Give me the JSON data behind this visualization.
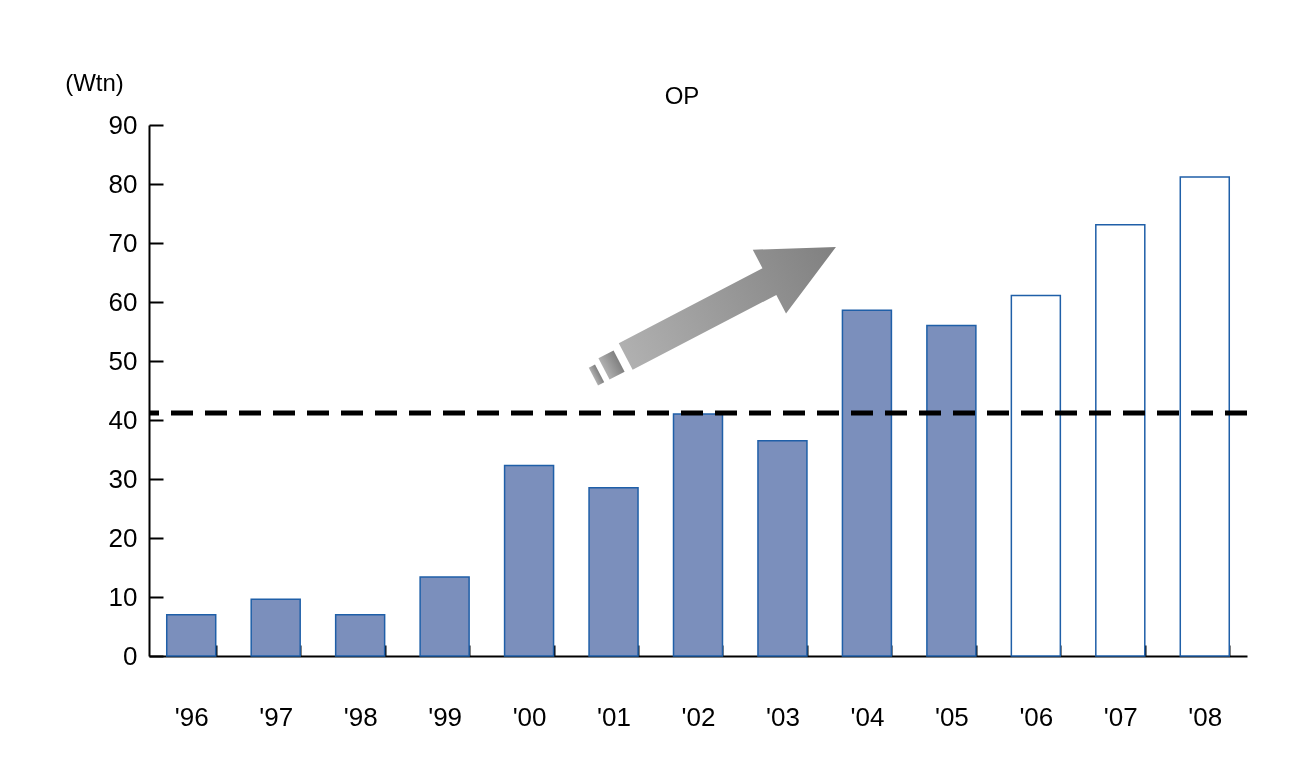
{
  "chart_data": {
    "type": "bar",
    "title": "OP",
    "ylabel": "(Wtn)",
    "categories": [
      "'96",
      "'97",
      "'98",
      "'99",
      "'00",
      "'01",
      "'02",
      "'03",
      "'04",
      "'05",
      "'06",
      "'07",
      "'08"
    ],
    "values": [
      7.0,
      9.6,
      7.0,
      13.4,
      32.3,
      28.5,
      41.0,
      36.5,
      58.6,
      56.0,
      61.1,
      73.1,
      81.2
    ],
    "colors": [
      "#7b8fbc",
      "#7b8fbc",
      "#7b8fbc",
      "#7b8fbc",
      "#7b8fbc",
      "#7b8fbc",
      "#7b8fbc",
      "#7b8fbc",
      "#7b8fbc",
      "#7b8fbc",
      "#ffffff",
      "#ffffff",
      "#ffffff"
    ],
    "color": "#1f5fa8",
    "ylim": [
      0,
      90
    ],
    "yticks": [
      0,
      10,
      20,
      30,
      40,
      50,
      60,
      70,
      80,
      90
    ],
    "ref_lines": [
      {
        "axis": "y",
        "value": 41.2,
        "color": "#000000",
        "line_style": "dashed"
      }
    ]
  }
}
